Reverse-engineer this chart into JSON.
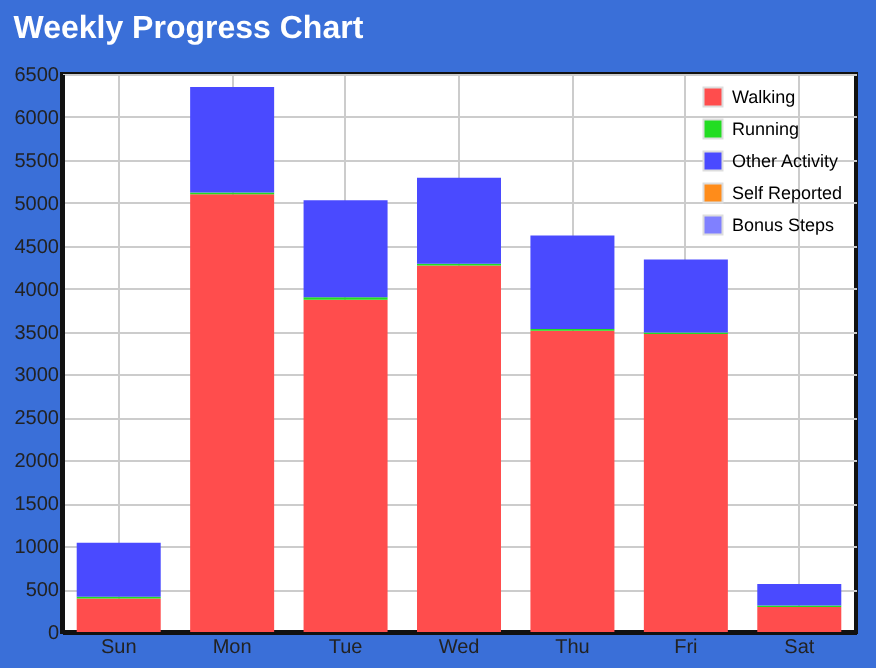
{
  "chart_data": {
    "type": "bar",
    "title": "Weekly Progress Chart",
    "stacked": true,
    "categories": [
      "Sun",
      "Mon",
      "Tue",
      "Wed",
      "Thu",
      "Fri",
      "Sat"
    ],
    "series": [
      {
        "name": "Walking",
        "color": "#ff4d4d",
        "values": [
          390,
          5100,
          3870,
          4270,
          3510,
          3470,
          290
        ]
      },
      {
        "name": "Running",
        "color": "#22dd22",
        "values": [
          20,
          20,
          30,
          20,
          20,
          20,
          20
        ]
      },
      {
        "name": "Other Activity",
        "color": "#4a4aff",
        "values": [
          630,
          1230,
          1130,
          1000,
          1090,
          850,
          250
        ]
      },
      {
        "name": "Self Reported",
        "color": "#ff8c1a",
        "values": [
          0,
          0,
          0,
          0,
          0,
          0,
          0
        ]
      },
      {
        "name": "Bonus Steps",
        "color": "#8080ff",
        "values": [
          0,
          0,
          0,
          0,
          0,
          0,
          0
        ]
      }
    ],
    "ylim": [
      0,
      6500
    ],
    "yticks": [
      0,
      500,
      1000,
      1500,
      2000,
      2500,
      3000,
      3500,
      4000,
      4500,
      5000,
      5500,
      6000,
      6500
    ],
    "grid": true,
    "legend": "top right"
  }
}
